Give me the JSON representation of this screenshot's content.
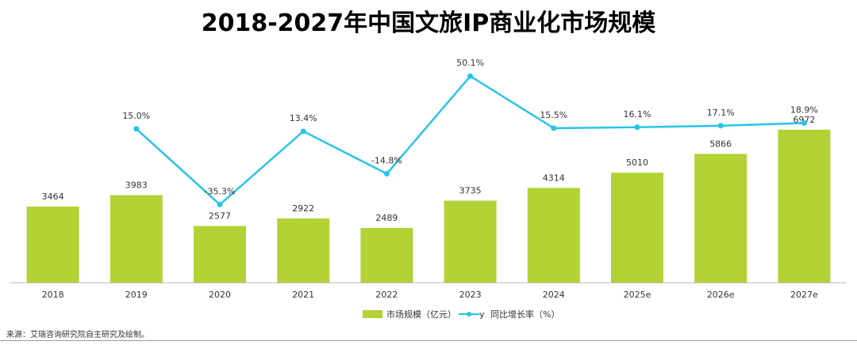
{
  "chart_data": {
    "type": "bar",
    "title": "2018-2027年中国文旅IP商业化市场规模",
    "categories": [
      "2018",
      "2019",
      "2020",
      "2021",
      "2022",
      "2023",
      "2024",
      "2025e",
      "2026e",
      "2027e"
    ],
    "series": [
      {
        "name": "市场规模（亿元）",
        "type": "bar",
        "color": "#b2d235",
        "values": [
          3464,
          3983,
          2577,
          2922,
          2489,
          3735,
          4314,
          5010,
          5866,
          6972
        ],
        "labels": [
          "3464",
          "3983",
          "2577",
          "2922",
          "2489",
          "3735",
          "4314",
          "5010",
          "5866",
          "6972"
        ]
      },
      {
        "name": "同比增长率（%）",
        "type": "line",
        "color": "#27c4ea",
        "values": [
          null,
          15.0,
          -35.3,
          13.4,
          -14.8,
          50.1,
          15.5,
          16.1,
          17.1,
          18.9
        ],
        "labels": [
          "",
          "15.0%",
          "-35.3%",
          "13.4%",
          "-14.8%",
          "50.1%",
          "15.5%",
          "16.1%",
          "17.1%",
          "18.9%"
        ]
      }
    ],
    "legend": {
      "placement": "bottom",
      "bar_label": "市场规模（亿元）",
      "line_prefix": "y",
      "line_label": "同比增长率（%）"
    }
  },
  "footer": {
    "source": "来源：艾瑞咨询研究院自主研究及绘制。"
  }
}
